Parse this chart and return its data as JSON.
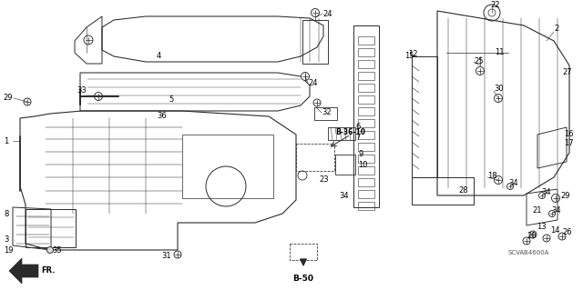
{
  "background_color": "#ffffff",
  "line_color": "#2a2a2a",
  "text_color": "#000000",
  "label_fontsize": 6.0,
  "diagram_code": "SCVAB4600A",
  "fr_label": "FR.",
  "b36_label": "B-36-10",
  "b50_label": "B-50"
}
